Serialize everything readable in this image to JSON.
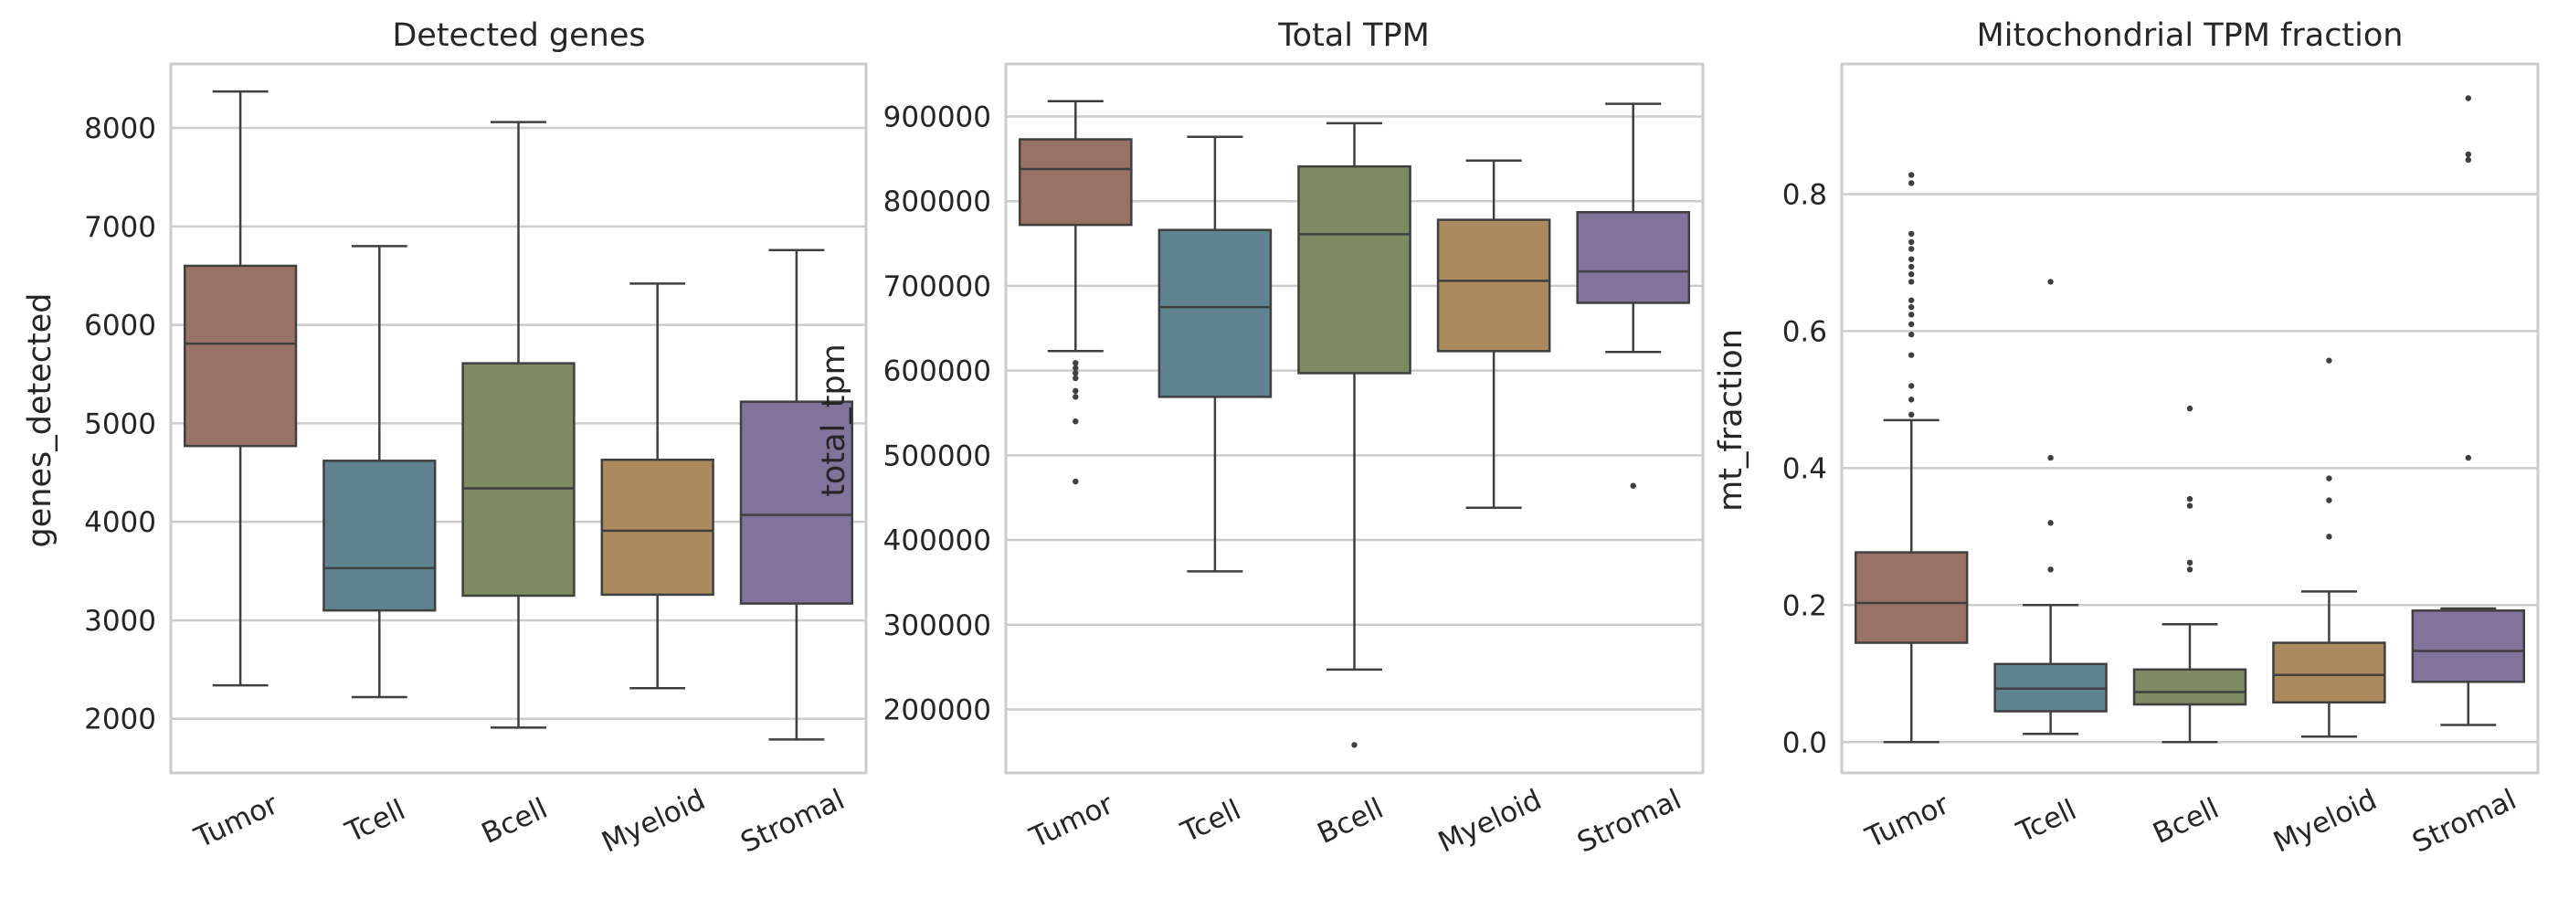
{
  "chart_data": [
    {
      "type": "box",
      "title": "Detected genes",
      "xlabel": "",
      "ylabel": "genes_detected",
      "ylim": [
        1450,
        8650
      ],
      "yticks": [
        2000,
        3000,
        4000,
        5000,
        6000,
        7000,
        8000
      ],
      "ytick_labels": [
        "2000",
        "3000",
        "4000",
        "5000",
        "6000",
        "7000",
        "8000"
      ],
      "grid": true,
      "categories": [
        "Tumor",
        "Tcell",
        "Bcell",
        "Myeloid",
        "Stromal"
      ],
      "colors": [
        "#9a7265",
        "#5f838f",
        "#7e8b62",
        "#ab8a5e",
        "#80749a"
      ],
      "boxes": [
        {
          "whislo": 2340,
          "q1": 4770,
          "med": 5810,
          "q3": 6600,
          "whishi": 8370,
          "fliers": []
        },
        {
          "whislo": 2220,
          "q1": 3100,
          "med": 3530,
          "q3": 4620,
          "whishi": 6800,
          "fliers": []
        },
        {
          "whislo": 1910,
          "q1": 3250,
          "med": 4340,
          "q3": 5610,
          "whishi": 8060,
          "fliers": []
        },
        {
          "whislo": 2310,
          "q1": 3260,
          "med": 3910,
          "q3": 4630,
          "whishi": 6420,
          "fliers": []
        },
        {
          "whislo": 1790,
          "q1": 3170,
          "med": 4070,
          "q3": 5220,
          "whishi": 6760,
          "fliers": []
        }
      ]
    },
    {
      "type": "box",
      "title": "Total TPM",
      "xlabel": "",
      "ylabel": "total_tpm",
      "ylim": [
        125000,
        962000
      ],
      "yticks": [
        200000,
        300000,
        400000,
        500000,
        600000,
        700000,
        800000,
        900000
      ],
      "ytick_labels": [
        "200000",
        "300000",
        "400000",
        "500000",
        "600000",
        "700000",
        "800000",
        "900000"
      ],
      "grid": true,
      "categories": [
        "Tumor",
        "Tcell",
        "Bcell",
        "Myeloid",
        "Stromal"
      ],
      "colors": [
        "#9a7265",
        "#5f838f",
        "#7e8b62",
        "#ab8a5e",
        "#80749a"
      ],
      "boxes": [
        {
          "whislo": 623000,
          "q1": 772000,
          "med": 838000,
          "q3": 873000,
          "whishi": 918000,
          "fliers": [
            609000,
            603000,
            597000,
            591000,
            576000,
            569000,
            540000,
            469000
          ]
        },
        {
          "whislo": 363000,
          "q1": 569000,
          "med": 675000,
          "q3": 766000,
          "whishi": 876000,
          "fliers": []
        },
        {
          "whislo": 247000,
          "q1": 597000,
          "med": 761000,
          "q3": 841000,
          "whishi": 892000,
          "fliers": [
            158000
          ]
        },
        {
          "whislo": 438000,
          "q1": 623000,
          "med": 706000,
          "q3": 778000,
          "whishi": 848000,
          "fliers": []
        },
        {
          "whislo": 622000,
          "q1": 680000,
          "med": 717000,
          "q3": 787000,
          "whishi": 915000,
          "fliers": [
            464000
          ]
        }
      ]
    },
    {
      "type": "box",
      "title": "Mitochondrial TPM fraction",
      "xlabel": "",
      "ylabel": "mt_fraction",
      "ylim": [
        -0.045,
        0.99
      ],
      "yticks": [
        0.0,
        0.2,
        0.4,
        0.6,
        0.8
      ],
      "ytick_labels": [
        "0.0",
        "0.2",
        "0.4",
        "0.6",
        "0.8"
      ],
      "grid": true,
      "categories": [
        "Tumor",
        "Tcell",
        "Bcell",
        "Myeloid",
        "Stromal"
      ],
      "colors": [
        "#9a7265",
        "#5f838f",
        "#7e8b62",
        "#ab8a5e",
        "#80749a"
      ],
      "boxes": [
        {
          "whislo": 0.0,
          "q1": 0.145,
          "med": 0.203,
          "q3": 0.277,
          "whishi": 0.47,
          "fliers": [
            0.828,
            0.816,
            0.742,
            0.73,
            0.72,
            0.705,
            0.694,
            0.683,
            0.672,
            0.645,
            0.635,
            0.624,
            0.61,
            0.595,
            0.565,
            0.52,
            0.5,
            0.478
          ]
        },
        {
          "whislo": 0.012,
          "q1": 0.045,
          "med": 0.078,
          "q3": 0.114,
          "whishi": 0.2,
          "fliers": [
            0.672,
            0.415,
            0.32,
            0.252
          ]
        },
        {
          "whislo": 0.0,
          "q1": 0.055,
          "med": 0.073,
          "q3": 0.106,
          "whishi": 0.172,
          "fliers": [
            0.487,
            0.355,
            0.345,
            0.262,
            0.252
          ]
        },
        {
          "whislo": 0.008,
          "q1": 0.058,
          "med": 0.098,
          "q3": 0.145,
          "whishi": 0.22,
          "fliers": [
            0.557,
            0.385,
            0.353,
            0.3
          ]
        },
        {
          "whislo": 0.025,
          "q1": 0.088,
          "med": 0.133,
          "q3": 0.192,
          "whishi": 0.195,
          "fliers": [
            0.94,
            0.858,
            0.85,
            0.415
          ]
        }
      ]
    }
  ]
}
